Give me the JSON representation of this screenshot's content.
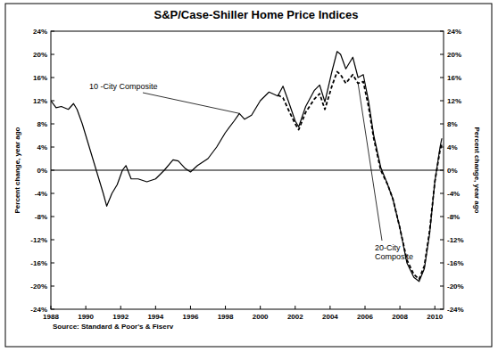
{
  "chart_data": {
    "type": "line",
    "title": "S&P/Case-Shiller Home Price Indices",
    "ylabel": "Percent change, year ago",
    "y2label": "Percent change, year ago",
    "source": "Source: Standard & Poor's & Fiserv",
    "x": [
      1988.0,
      1988.3,
      1988.6,
      1989.0,
      1989.3,
      1989.5,
      1989.8,
      1990.2,
      1990.6,
      1991.0,
      1991.2,
      1991.5,
      1991.8,
      1992.1,
      1992.3,
      1992.6,
      1993.0,
      1993.5,
      1994.0,
      1994.5,
      1995.0,
      1995.3,
      1995.7,
      1996.0,
      1996.4,
      1997.0,
      1997.5,
      1998.0,
      1998.5,
      1998.8,
      1999.1,
      1999.5,
      2000.0,
      2000.5,
      2001.0,
      2001.3,
      2001.6,
      2002.0,
      2002.2,
      2002.6,
      2003.1,
      2003.4,
      2003.7,
      2004.1,
      2004.4,
      2004.6,
      2004.9,
      2005.3,
      2005.6,
      2005.9,
      2006.2,
      2006.5,
      2006.9,
      2007.3,
      2007.6,
      2008.0,
      2008.4,
      2008.8,
      2009.1,
      2009.4,
      2009.7,
      2010.0,
      2010.3,
      2010.4
    ],
    "series": [
      {
        "name": "10 -City Composite",
        "color": "#000000",
        "line_style": "solid",
        "values": [
          12,
          10.8,
          11,
          10.5,
          11.5,
          10.5,
          8,
          4,
          0,
          -4,
          -6.2,
          -4,
          -2.5,
          0,
          0.8,
          -1.5,
          -1.5,
          -2,
          -1.5,
          0,
          1.8,
          1.6,
          0.3,
          -0.3,
          0.8,
          2,
          4,
          6.5,
          8.5,
          9.8,
          8.8,
          9.5,
          12,
          13.5,
          12.8,
          14.5,
          12,
          8.5,
          7.5,
          11,
          13.8,
          14.7,
          11.8,
          17,
          20.5,
          20,
          17.5,
          19.5,
          16,
          16.5,
          12,
          6,
          0.5,
          -2.5,
          -5,
          -10,
          -16,
          -18.5,
          -19.2,
          -17,
          -11,
          -2,
          4,
          5.5
        ]
      },
      {
        "name": "20-City Composite",
        "color": "#000000",
        "line_style": "dashed",
        "values": [
          null,
          null,
          null,
          null,
          null,
          null,
          null,
          null,
          null,
          null,
          null,
          null,
          null,
          null,
          null,
          null,
          null,
          null,
          null,
          null,
          null,
          null,
          null,
          null,
          null,
          null,
          null,
          null,
          null,
          null,
          null,
          null,
          null,
          null,
          13,
          12.5,
          10.5,
          8,
          7,
          10,
          12.3,
          13.2,
          10.5,
          14.5,
          17,
          16.5,
          15,
          16.5,
          15,
          15.3,
          11,
          5.5,
          0,
          -2.5,
          -5,
          -10,
          -15.5,
          -18,
          -18.8,
          -16.5,
          -10.5,
          -2,
          3.5,
          4.5
        ]
      }
    ],
    "xlim": [
      1988,
      2010.5
    ],
    "xticks": [
      1988,
      1990,
      1992,
      1994,
      1996,
      1998,
      2000,
      2002,
      2004,
      2006,
      2008,
      2010
    ],
    "ylim": [
      -24,
      24
    ],
    "yticks": [
      {
        "value": -24,
        "label": "-24%"
      },
      {
        "value": -20,
        "label": "-20%"
      },
      {
        "value": -16,
        "label": "-16%"
      },
      {
        "value": -12,
        "label": "-12%"
      },
      {
        "value": -8,
        "label": "-8%"
      },
      {
        "value": -4,
        "label": "-4%"
      },
      {
        "value": 0,
        "label": "0%"
      },
      {
        "value": 4,
        "label": "4%"
      },
      {
        "value": 8,
        "label": "8%"
      },
      {
        "value": 12,
        "label": "12%"
      },
      {
        "value": 16,
        "label": "16%"
      },
      {
        "value": 20,
        "label": "20%"
      },
      {
        "value": 24,
        "label": "24%"
      }
    ],
    "y2lim": [
      -24,
      24
    ],
    "y2ticks": [
      {
        "value": -24,
        "label": "-24%"
      },
      {
        "value": -20,
        "label": "-20%"
      },
      {
        "value": -16,
        "label": "-16%"
      },
      {
        "value": -12,
        "label": "-12%"
      },
      {
        "value": -8,
        "label": "-8%"
      },
      {
        "value": -4,
        "label": "-4%"
      },
      {
        "value": 0,
        "label": "0%"
      },
      {
        "value": 4,
        "label": "4%"
      },
      {
        "value": 8,
        "label": "8%"
      },
      {
        "value": 12,
        "label": "12%"
      },
      {
        "value": 16,
        "label": "16%"
      },
      {
        "value": 20,
        "label": "20%"
      },
      {
        "value": 24,
        "label": "24%"
      }
    ],
    "grid": false
  }
}
